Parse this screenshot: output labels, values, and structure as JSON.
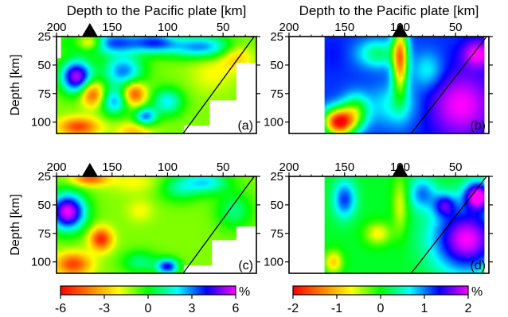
{
  "chart_data": {
    "type": "heatmap",
    "panel_count": 4,
    "shared_labels": {
      "x_top_title": "Depth to the Pacific plate [km]",
      "ylabel": "Depth [km]",
      "unit": "%"
    },
    "panels": [
      {
        "label": "(a)",
        "xlim": [
          200,
          20
        ],
        "ylim": [
          25,
          110
        ],
        "x_ticks": [
          "200",
          "150",
          "100",
          "50"
        ],
        "y_ticks": [
          "25",
          "50",
          "75",
          "100"
        ],
        "show_top_title": true,
        "show_ylabel": true,
        "volcano_x": 170,
        "colorscale": "seismic-a",
        "blanks": [
          {
            "x": [
              200,
              196
            ],
            "y": [
              25,
              44
            ]
          },
          {
            "x": [
              85,
              20
            ],
            "y": [
              103,
              110
            ]
          },
          {
            "x": [
              62,
              20
            ],
            "y": [
              81,
              110
            ]
          },
          {
            "x": [
              38,
              20
            ],
            "y": [
              48,
              110
            ]
          }
        ],
        "slab_line": {
          "x1": 86,
          "y1": 110,
          "x2": 22,
          "y2": 25
        },
        "anomalies": [
          {
            "x": 150,
            "y": 30,
            "sx": 35,
            "sy": 10,
            "v": 3.5
          },
          {
            "x": 170,
            "y": 30,
            "sx": 12,
            "sy": 7,
            "v": -5
          },
          {
            "x": 110,
            "y": 30,
            "sx": 18,
            "sy": 9,
            "v": 2
          },
          {
            "x": 70,
            "y": 34,
            "sx": 30,
            "sy": 10,
            "v": 3
          },
          {
            "x": 190,
            "y": 36,
            "sx": 12,
            "sy": 10,
            "v": -1
          },
          {
            "x": 182,
            "y": 60,
            "sx": 14,
            "sy": 14,
            "v": 5.5
          },
          {
            "x": 140,
            "y": 55,
            "sx": 18,
            "sy": 14,
            "v": 3
          },
          {
            "x": 60,
            "y": 56,
            "sx": 20,
            "sy": 18,
            "v": -2
          },
          {
            "x": 38,
            "y": 42,
            "sx": 14,
            "sy": 12,
            "v": -3
          },
          {
            "x": 168,
            "y": 75,
            "sx": 10,
            "sy": 11,
            "v": -5
          },
          {
            "x": 130,
            "y": 75,
            "sx": 10,
            "sy": 10,
            "v": -5
          },
          {
            "x": 148,
            "y": 82,
            "sx": 12,
            "sy": 12,
            "v": 2.5
          },
          {
            "x": 100,
            "y": 82,
            "sx": 14,
            "sy": 12,
            "v": 2
          },
          {
            "x": 180,
            "y": 104,
            "sx": 18,
            "sy": 8,
            "v": -5
          },
          {
            "x": 130,
            "y": 108,
            "sx": 16,
            "sy": 8,
            "v": -3
          },
          {
            "x": 120,
            "y": 95,
            "sx": 10,
            "sy": 8,
            "v": 3
          }
        ],
        "base": -1
      },
      {
        "label": "(b)",
        "xlim": [
          200,
          20
        ],
        "ylim": [
          25,
          110
        ],
        "x_ticks": [
          "200",
          "150",
          "100",
          "50"
        ],
        "y_ticks": [
          "25",
          "50",
          "75",
          "100"
        ],
        "show_top_title": true,
        "show_ylabel": false,
        "volcano_x": 100,
        "colorscale": "seismic-b",
        "blanks": [
          {
            "x": [
              200,
              168
            ],
            "y": [
              25,
              110
            ]
          },
          {
            "x": [
              24,
              20
            ],
            "y": [
              25,
              110
            ]
          }
        ],
        "slab_line": {
          "x1": 90,
          "y1": 110,
          "x2": 22,
          "y2": 25
        },
        "anomalies": [
          {
            "x": 160,
            "y": 40,
            "sx": 12,
            "sy": 16,
            "v": 1.3
          },
          {
            "x": 100,
            "y": 45,
            "sx": 7,
            "sy": 30,
            "v": -1.3
          },
          {
            "x": 120,
            "y": 40,
            "sx": 18,
            "sy": 12,
            "v": 0.3
          },
          {
            "x": 155,
            "y": 100,
            "sx": 14,
            "sy": 12,
            "v": -2
          },
          {
            "x": 140,
            "y": 90,
            "sx": 12,
            "sy": 14,
            "v": 0
          },
          {
            "x": 105,
            "y": 85,
            "sx": 22,
            "sy": 18,
            "v": 0.6
          },
          {
            "x": 75,
            "y": 55,
            "sx": 14,
            "sy": 16,
            "v": 0.6
          },
          {
            "x": 45,
            "y": 85,
            "sx": 30,
            "sy": 30,
            "v": 2
          },
          {
            "x": 30,
            "y": 40,
            "sx": 14,
            "sy": 12,
            "v": 2
          }
        ],
        "base": 1.2
      },
      {
        "label": "(c)",
        "xlim": [
          200,
          20
        ],
        "ylim": [
          25,
          110
        ],
        "x_ticks": [
          "200",
          "150",
          "100",
          "50"
        ],
        "y_ticks": [
          "25",
          "50",
          "75",
          "100"
        ],
        "show_top_title": false,
        "show_ylabel": true,
        "volcano_x": 170,
        "colorscale": "seismic-a",
        "blanks": [
          {
            "x": [
              85,
              20
            ],
            "y": [
              103,
              110
            ]
          },
          {
            "x": [
              60,
              20
            ],
            "y": [
              81,
              110
            ]
          },
          {
            "x": [
              38,
              20
            ],
            "y": [
              69,
              110
            ]
          }
        ],
        "slab_line": {
          "x1": 86,
          "y1": 110,
          "x2": 22,
          "y2": 25
        },
        "anomalies": [
          {
            "x": 190,
            "y": 56,
            "sx": 16,
            "sy": 16,
            "v": 6
          },
          {
            "x": 170,
            "y": 27,
            "sx": 16,
            "sy": 6,
            "v": -4.5
          },
          {
            "x": 130,
            "y": 30,
            "sx": 24,
            "sy": 10,
            "v": -2
          },
          {
            "x": 90,
            "y": 35,
            "sx": 18,
            "sy": 12,
            "v": 1
          },
          {
            "x": 65,
            "y": 30,
            "sx": 20,
            "sy": 10,
            "v": 2
          },
          {
            "x": 160,
            "y": 80,
            "sx": 10,
            "sy": 10,
            "v": -5.5
          },
          {
            "x": 125,
            "y": 55,
            "sx": 12,
            "sy": 10,
            "v": -2
          },
          {
            "x": 185,
            "y": 102,
            "sx": 16,
            "sy": 10,
            "v": -5
          },
          {
            "x": 125,
            "y": 100,
            "sx": 16,
            "sy": 10,
            "v": 1
          },
          {
            "x": 100,
            "y": 104,
            "sx": 10,
            "sy": 7,
            "v": 4
          },
          {
            "x": 40,
            "y": 55,
            "sx": 16,
            "sy": 16,
            "v": 1
          }
        ],
        "base": -1
      },
      {
        "label": "(d)",
        "xlim": [
          200,
          20
        ],
        "ylim": [
          25,
          110
        ],
        "x_ticks": [
          "200",
          "150",
          "100",
          "50"
        ],
        "y_ticks": [
          "25",
          "50",
          "75",
          "100"
        ],
        "show_top_title": false,
        "show_ylabel": false,
        "volcano_x": 100,
        "colorscale": "seismic-b",
        "blanks": [
          {
            "x": [
              200,
              168
            ],
            "y": [
              25,
              110
            ]
          },
          {
            "x": [
              24,
              20
            ],
            "y": [
              25,
              110
            ]
          }
        ],
        "slab_line": {
          "x1": 90,
          "y1": 110,
          "x2": 22,
          "y2": 25
        },
        "anomalies": [
          {
            "x": 150,
            "y": 45,
            "sx": 10,
            "sy": 16,
            "v": 1.2
          },
          {
            "x": 100,
            "y": 50,
            "sx": 7,
            "sy": 25,
            "v": -0.6
          },
          {
            "x": 120,
            "y": 75,
            "sx": 12,
            "sy": 10,
            "v": -0.7
          },
          {
            "x": 160,
            "y": 100,
            "sx": 8,
            "sy": 10,
            "v": -0.9
          },
          {
            "x": 80,
            "y": 40,
            "sx": 12,
            "sy": 14,
            "v": 1
          },
          {
            "x": 60,
            "y": 50,
            "sx": 10,
            "sy": 10,
            "v": 1.2
          },
          {
            "x": 40,
            "y": 80,
            "sx": 30,
            "sy": 28,
            "v": 2
          },
          {
            "x": 30,
            "y": 42,
            "sx": 12,
            "sy": 12,
            "v": 2
          },
          {
            "x": 22,
            "y": 107,
            "sx": 3,
            "sy": 3,
            "v": -1.5
          }
        ],
        "base": 0.1
      }
    ],
    "colorbars": [
      {
        "range": [
          -6,
          6
        ],
        "tick_labels": [
          "-6",
          "-3",
          "0",
          "3",
          "6"
        ],
        "unit": "%"
      },
      {
        "range": [
          -2,
          2
        ],
        "tick_labels": [
          "-2",
          "-1",
          "0",
          "1",
          "2"
        ],
        "unit": "%"
      }
    ],
    "colors": {
      "stops": [
        "#ff0000",
        "#ff8000",
        "#ffff00",
        "#00ff00",
        "#00ffff",
        "#0000ff",
        "#ff00ff"
      ],
      "blank": "#ffffff",
      "line": "#000000",
      "volcano": "#000000"
    }
  }
}
